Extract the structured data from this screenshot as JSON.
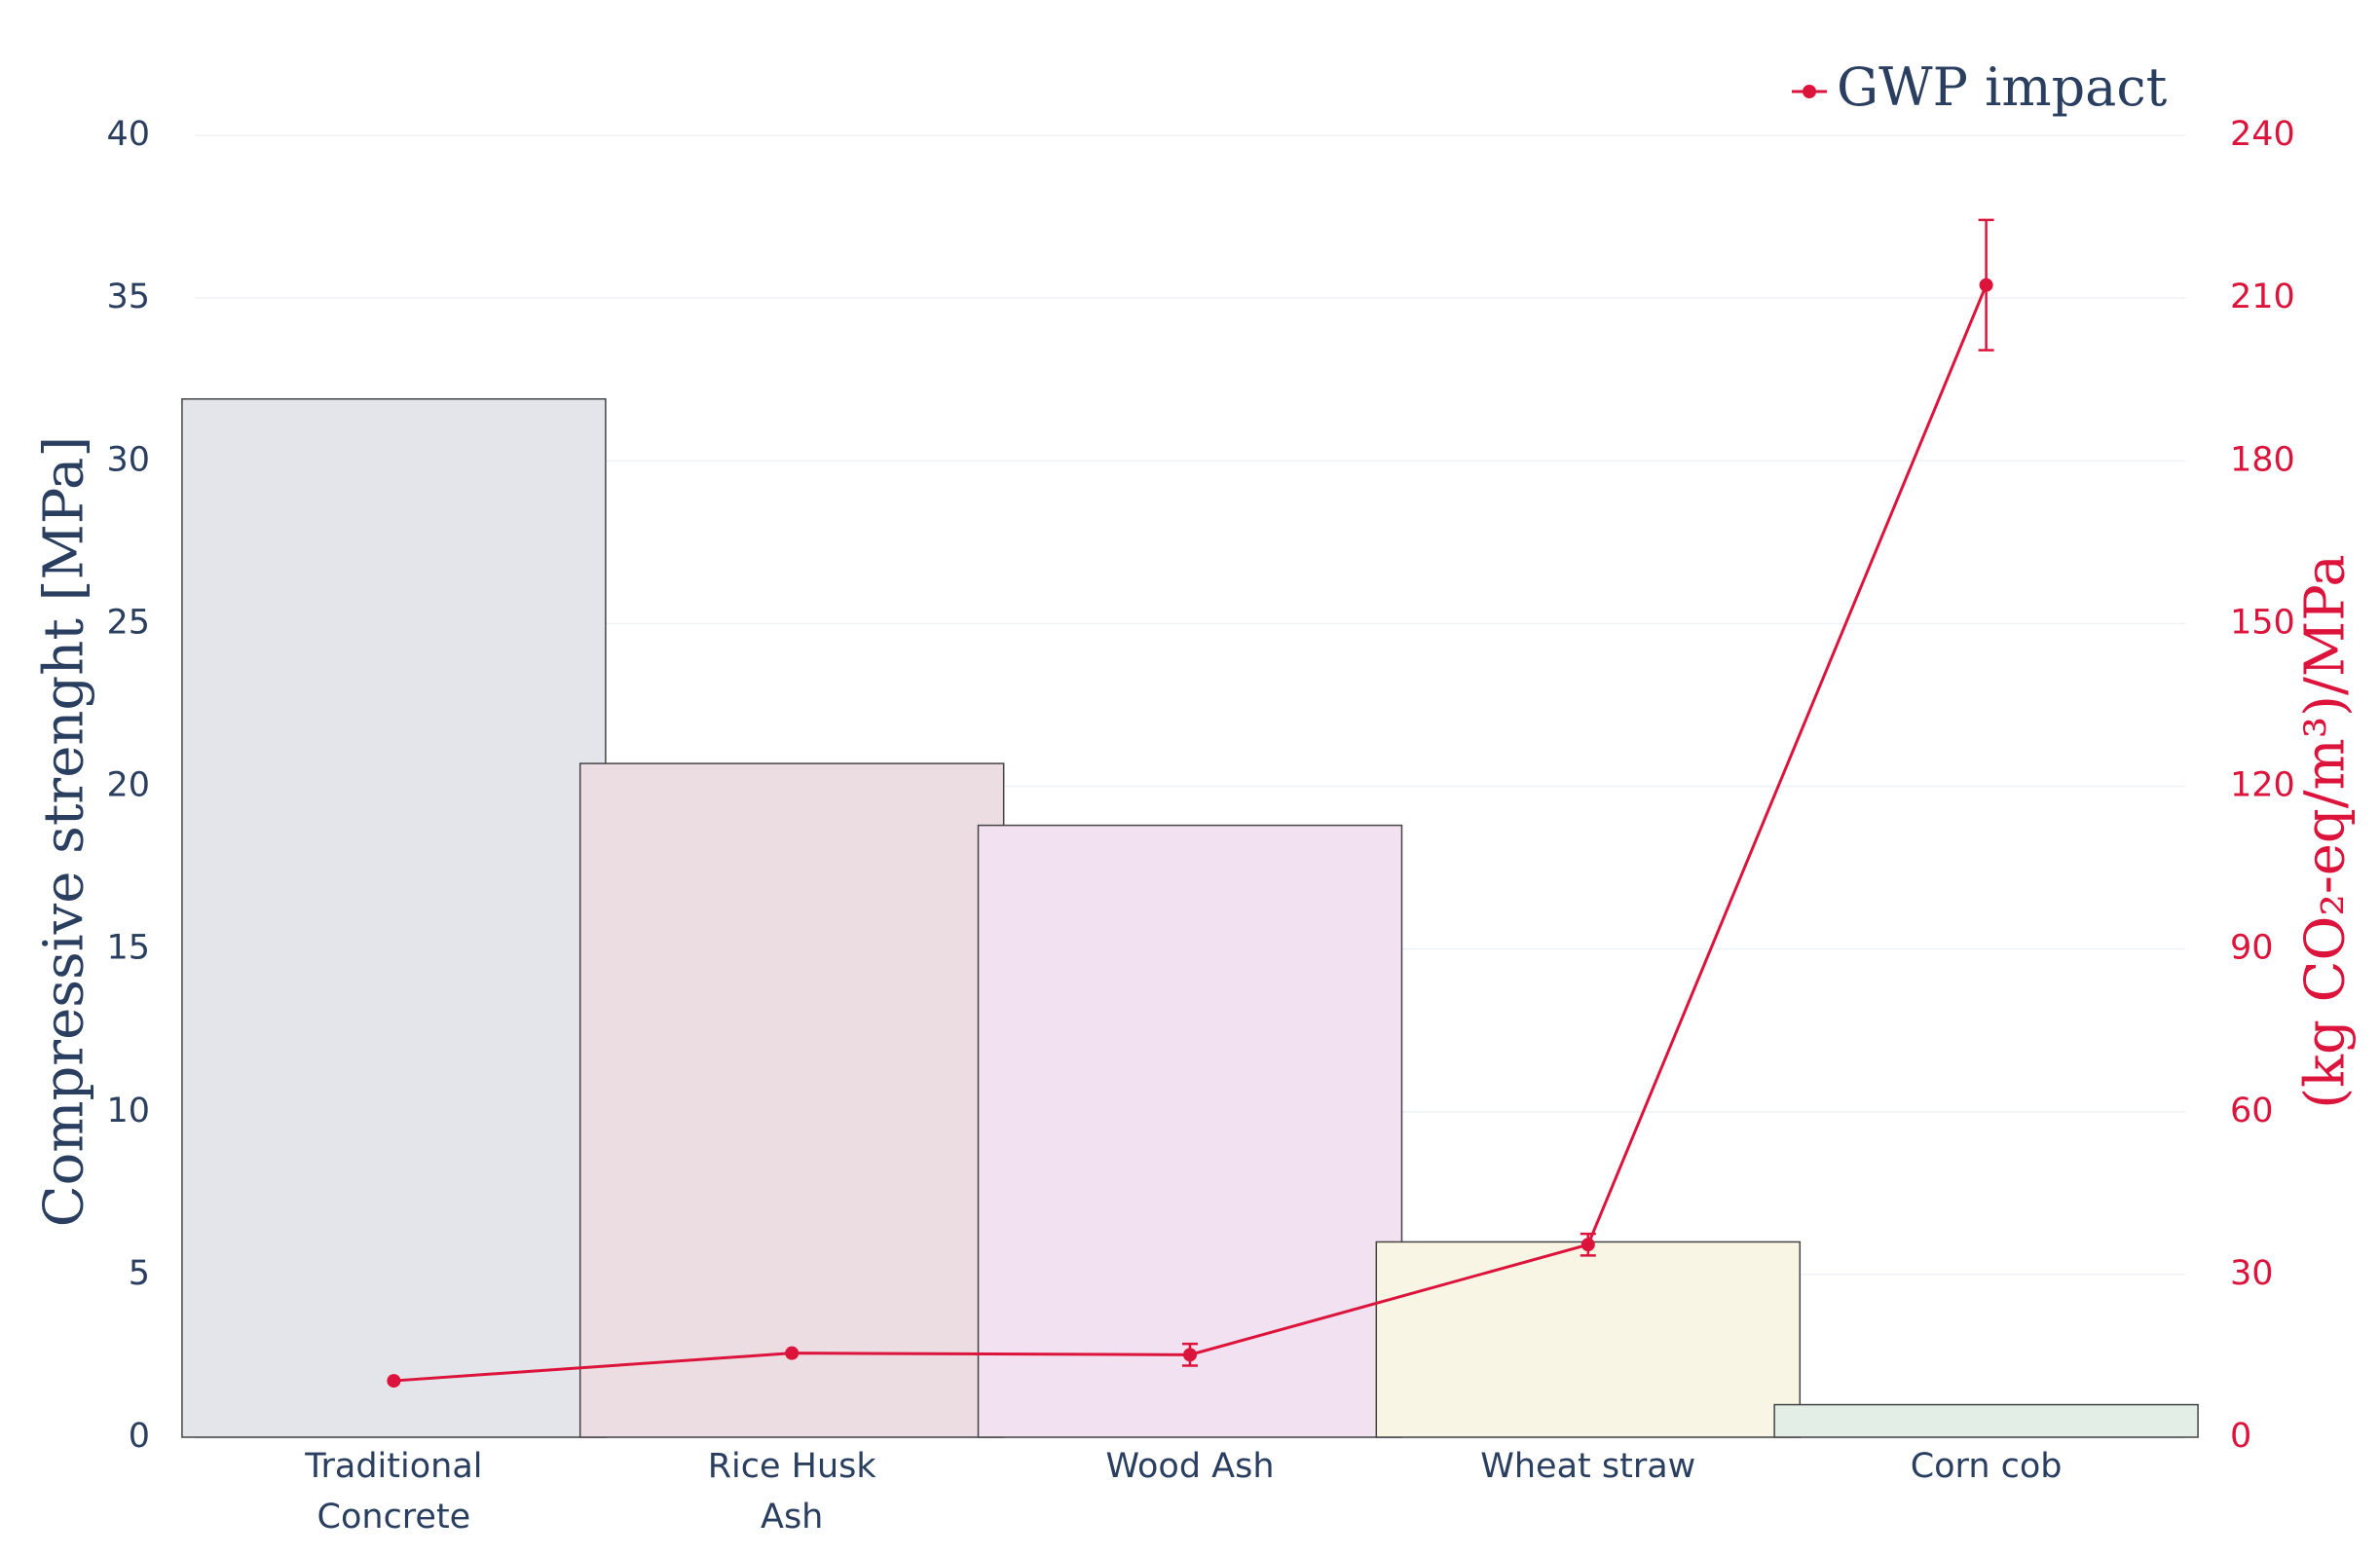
{
  "chart_data": {
    "type": "bar_line",
    "categories": [
      "Traditional\nConcrete",
      "Rice Husk\nAsh",
      "Wood Ash",
      "Wheat straw",
      "Corn cob"
    ],
    "ylabel": "Compressive strenght [MPa]",
    "y2label": "(kg CO₂-eq/m³)/MPa",
    "ylim": [
      0,
      40
    ],
    "yticks": [
      0,
      5,
      10,
      15,
      20,
      25,
      30,
      35,
      40
    ],
    "y2lim": [
      0,
      240
    ],
    "y2ticks": [
      0,
      30,
      60,
      90,
      120,
      150,
      180,
      210,
      240
    ],
    "grid": true,
    "legend": "top-right",
    "series": [
      {
        "type": "bar",
        "values": [
          31.9,
          20.7,
          18.8,
          6.0,
          1.0
        ],
        "colors": [
          "#e3e5ea",
          "#ecdde2",
          "#f2e1f0",
          "#f8f5e4",
          "#e3efe6"
        ]
      },
      {
        "type": "line",
        "name": "GWP impact",
        "color": "#dc143c",
        "axis": "y2",
        "values": [
          10.4,
          15.5,
          15.2,
          35.5,
          212.4
        ],
        "errors": [
          null,
          null,
          2,
          2,
          12
        ]
      }
    ]
  }
}
